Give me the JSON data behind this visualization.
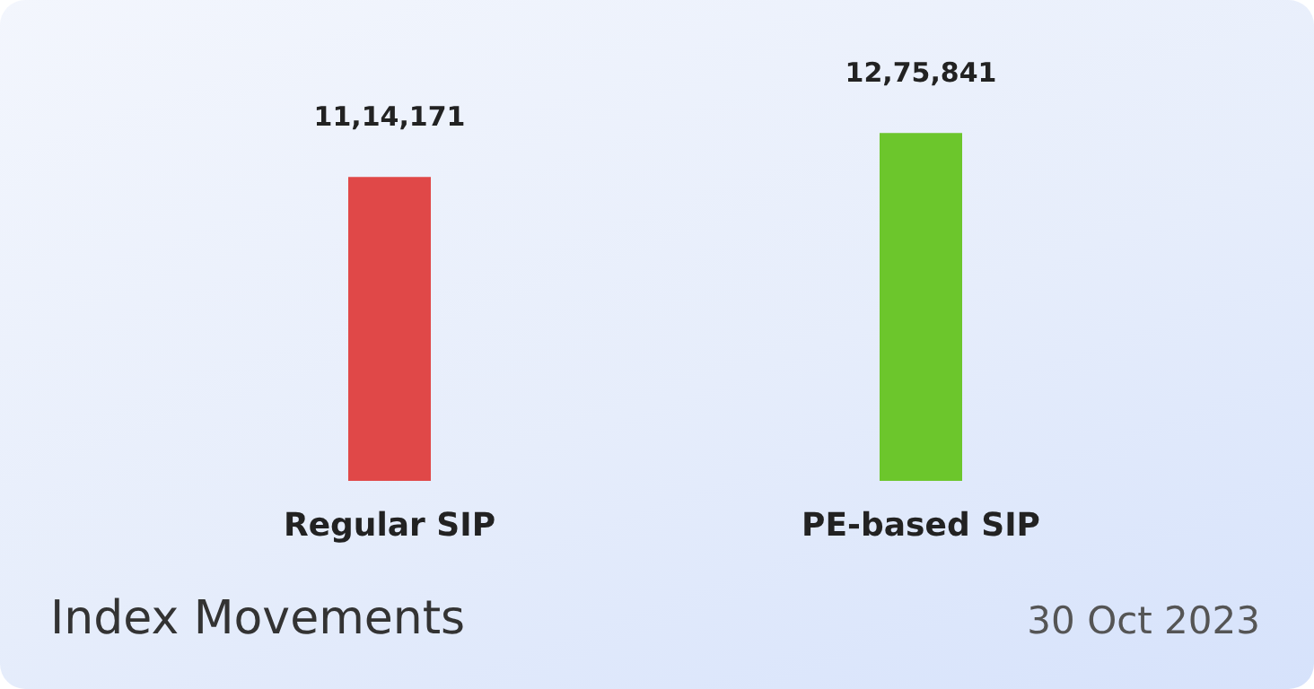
{
  "chart_data": {
    "type": "bar",
    "title": "Index Movements",
    "annotations": [
      "30 Oct 2023"
    ],
    "categories": [
      "Regular SIP",
      "PE-based SIP"
    ],
    "values": [
      1114171,
      1275841
    ],
    "value_labels": [
      "11,14,171",
      "12,75,841"
    ],
    "colors": [
      "#e04848",
      "#6cc62c"
    ],
    "tick_labels": "x"
  }
}
